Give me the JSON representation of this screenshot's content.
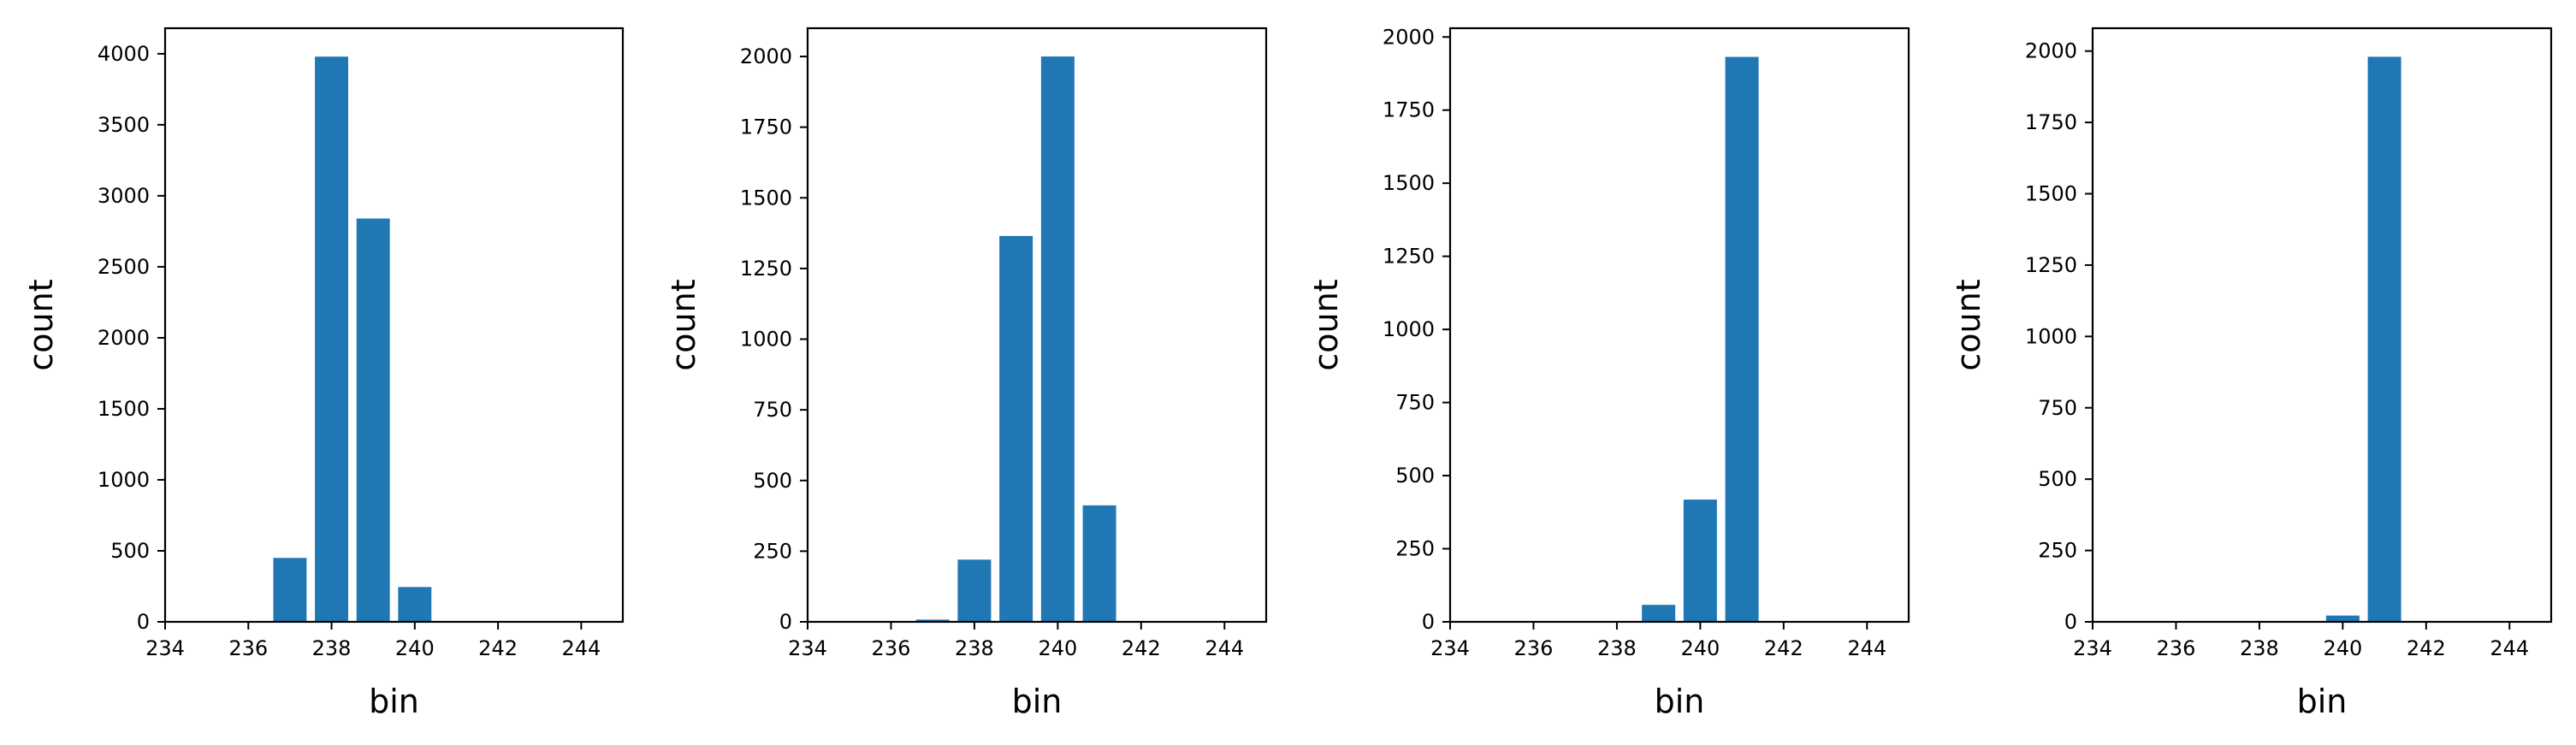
{
  "figure": {
    "bar_color": "#1f77b4",
    "axis_color": "#000000",
    "background": "#ffffff"
  },
  "chart_data": [
    {
      "type": "bar",
      "xlabel": "bin",
      "ylabel": "count",
      "xlim": [
        234,
        245
      ],
      "ylim": [
        0,
        4180
      ],
      "xticks": [
        234,
        236,
        238,
        240,
        242,
        244
      ],
      "yticks": [
        0,
        500,
        1000,
        1500,
        2000,
        2500,
        3000,
        3500,
        4000
      ],
      "grid": false,
      "bars": [
        {
          "x": 237,
          "value": 450
        },
        {
          "x": 238,
          "value": 3980
        },
        {
          "x": 239,
          "value": 2840
        },
        {
          "x": 240,
          "value": 245
        }
      ]
    },
    {
      "type": "bar",
      "xlabel": "bin",
      "ylabel": "count",
      "xlim": [
        234,
        245
      ],
      "ylim": [
        0,
        2100
      ],
      "xticks": [
        234,
        236,
        238,
        240,
        242,
        244
      ],
      "yticks": [
        0,
        250,
        500,
        750,
        1000,
        1250,
        1500,
        1750,
        2000
      ],
      "grid": false,
      "bars": [
        {
          "x": 237,
          "value": 8
        },
        {
          "x": 238,
          "value": 220
        },
        {
          "x": 239,
          "value": 1365
        },
        {
          "x": 240,
          "value": 2000
        },
        {
          "x": 241,
          "value": 412
        }
      ]
    },
    {
      "type": "bar",
      "xlabel": "bin",
      "ylabel": "count",
      "xlim": [
        234,
        245
      ],
      "ylim": [
        0,
        2030
      ],
      "xticks": [
        234,
        236,
        238,
        240,
        242,
        244
      ],
      "yticks": [
        0,
        250,
        500,
        750,
        1000,
        1250,
        1500,
        1750,
        2000
      ],
      "grid": false,
      "bars": [
        {
          "x": 239,
          "value": 58
        },
        {
          "x": 240,
          "value": 418
        },
        {
          "x": 241,
          "value": 1932
        }
      ]
    },
    {
      "type": "bar",
      "xlabel": "bin",
      "ylabel": "count",
      "xlim": [
        234,
        245
      ],
      "ylim": [
        0,
        2080
      ],
      "xticks": [
        234,
        236,
        238,
        240,
        242,
        244
      ],
      "yticks": [
        0,
        250,
        500,
        750,
        1000,
        1250,
        1500,
        1750,
        2000
      ],
      "grid": false,
      "bars": [
        {
          "x": 240,
          "value": 22
        },
        {
          "x": 241,
          "value": 1980
        }
      ]
    }
  ]
}
